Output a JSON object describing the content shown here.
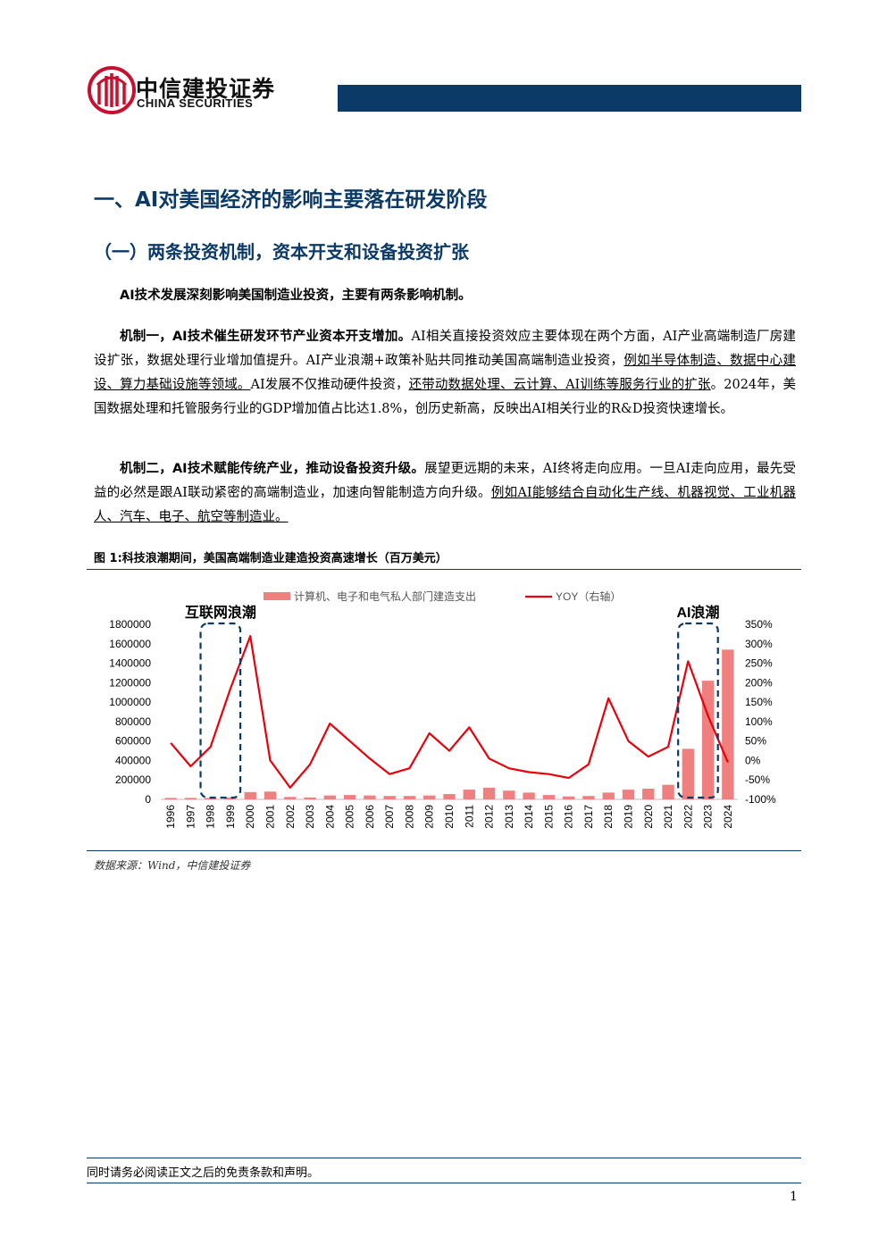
{
  "header": {
    "logo_cn": "中信建投证券",
    "logo_en": "CHINA SECURITIES"
  },
  "heading1": "一、AI对美国经济的影响主要落在研发阶段",
  "heading2": "（一）两条投资机制，资本开支和设备投资扩张",
  "paragraphs": [
    [
      {
        "text": "AI技术发展深刻影响美国制造业投资，主要有两条影响机制。",
        "bold": true
      }
    ],
    [
      {
        "text": "机制一，AI技术催生研发环节产业资本开支增加。",
        "bold": true
      },
      {
        "text": "AI相关直接投资效应主要体现在两个方面，AI产业高端制造厂房建设扩张，数据处理行业增加值提升。AI产业浪潮+政策补贴共同推动美国高端制造业投资，"
      },
      {
        "text": "例如半导体制造、数据中心建设、算力基础设施等领域。",
        "underline": true
      },
      {
        "text": "AI发展不仅推动硬件投资，"
      },
      {
        "text": "还带动数据处理、云计算、AI训练等服务行业的扩张",
        "underline": true
      },
      {
        "text": "。2024年，美国数据处理和托管服务行业的GDP增加值占比达1.8%，创历史新高，反映出AI相关行业的R&D投资快速增长。"
      }
    ],
    [
      {
        "text": "机制二，AI技术赋能传统产业，推动设备投资升级。",
        "bold": true
      },
      {
        "text": "展望更远期的未来，AI终将走向应用。一旦AI走向应用，最先受益的必然是跟AI联动紧密的高端制造业，加速向智能制造方向升级。"
      },
      {
        "text": "例如AI能够结合自动化生产线、机器视觉、工业机器人、汽车、电子、航空等制造业。",
        "underline": true
      }
    ]
  ],
  "figure": {
    "caption": "图 1:科技浪潮期间，美国高端制造业建造投资高速增长（百万美元）",
    "source": "数据来源：Wind，中信建投证券"
  },
  "chart_data": {
    "type": "bar_line",
    "categories": [
      "1996",
      "1997",
      "1998",
      "1999",
      "2000",
      "2001",
      "2002",
      "2003",
      "2004",
      "2005",
      "2006",
      "2007",
      "2008",
      "2009",
      "2010",
      "2011",
      "2012",
      "2013",
      "2014",
      "2015",
      "2016",
      "2017",
      "2018",
      "2019",
      "2020",
      "2021",
      "2022",
      "2023",
      "2024"
    ],
    "series": [
      {
        "name": "计算机、电子和电气私人部门建造支出",
        "type": "bar",
        "color": "#f08080",
        "values": [
          15000,
          15000,
          15000,
          20000,
          75000,
          80000,
          25000,
          20000,
          40000,
          45000,
          40000,
          35000,
          35000,
          40000,
          55000,
          100000,
          120000,
          90000,
          70000,
          45000,
          30000,
          35000,
          70000,
          100000,
          110000,
          150000,
          520000,
          1220000,
          1540000
        ]
      },
      {
        "name": "YOY（右轴）",
        "type": "line",
        "axis": "y2",
        "color": "#e8000b",
        "values": [
          45,
          -15,
          35,
          185,
          320,
          0,
          -70,
          -10,
          95,
          50,
          5,
          -35,
          -20,
          70,
          25,
          85,
          5,
          -20,
          -30,
          -35,
          -45,
          -10,
          160,
          50,
          10,
          35,
          255,
          115,
          -5
        ]
      }
    ],
    "ylim": [
      0,
      1800000
    ],
    "yticks": [
      0,
      200000,
      400000,
      600000,
      800000,
      1000000,
      1200000,
      1400000,
      1600000,
      1800000
    ],
    "y2lim": [
      -100,
      350
    ],
    "y2ticks": [
      {
        "value": -100,
        "label": "-100%"
      },
      {
        "value": -50,
        "label": "-50%"
      },
      {
        "value": 0,
        "label": "0%"
      },
      {
        "value": 50,
        "label": "50%"
      },
      {
        "value": 100,
        "label": "100%"
      },
      {
        "value": 150,
        "label": "150%"
      },
      {
        "value": 200,
        "label": "200%"
      },
      {
        "value": 250,
        "label": "250%"
      },
      {
        "value": 300,
        "label": "300%"
      },
      {
        "value": 350,
        "label": "350%"
      }
    ],
    "annotations": [
      "互联网浪潮",
      "AI浪潮"
    ],
    "grid": false
  },
  "footer": {
    "disclaimer": "同时请务必阅读正文之后的免责条款和声明。",
    "page": "1"
  }
}
